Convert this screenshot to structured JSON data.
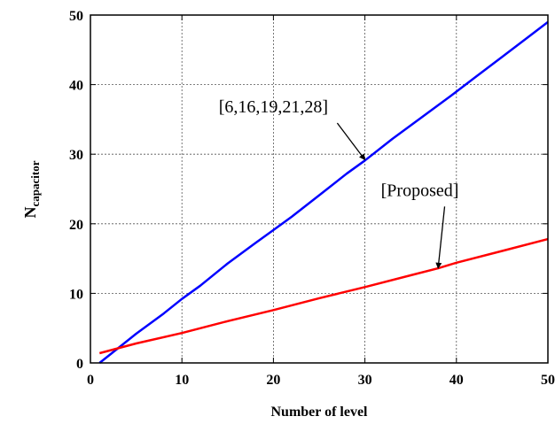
{
  "chart_data": {
    "type": "line",
    "xlabel": "Number of level",
    "ylabel": {
      "main": "N",
      "sub": "capacitor"
    },
    "xlim": [
      0,
      50
    ],
    "ylim": [
      0,
      50
    ],
    "xticks": [
      0,
      10,
      20,
      30,
      40,
      50
    ],
    "yticks": [
      0,
      10,
      20,
      30,
      40,
      50
    ],
    "grid": true,
    "series": [
      {
        "color": "#0000ff",
        "x": [
          1,
          3,
          5,
          8,
          10,
          12,
          15,
          18,
          20,
          22,
          25,
          28,
          30,
          33,
          36,
          39,
          40,
          42,
          45,
          48,
          50
        ],
        "y": [
          0,
          2.1,
          4.2,
          7.1,
          9.2,
          11.1,
          14.3,
          17.2,
          19.1,
          21.0,
          24.1,
          27.2,
          29.1,
          32.2,
          35.1,
          38.0,
          39.0,
          41.0,
          44.0,
          47.0,
          49.0
        ]
      },
      {
        "color": "#ff0000",
        "x": [
          1,
          5,
          10,
          15,
          20,
          25,
          30,
          35,
          38,
          40,
          45,
          50
        ],
        "y": [
          1.4,
          2.8,
          4.3,
          6.0,
          7.6,
          9.3,
          10.9,
          12.6,
          13.6,
          14.4,
          16.1,
          17.8
        ]
      }
    ],
    "annotations": [
      {
        "text": "[6,16,19,21,28]",
        "target": [
          30,
          29.2
        ],
        "label_at": [
          20,
          36
        ]
      },
      {
        "text": "[Proposed]",
        "target": [
          38,
          13.6
        ],
        "label_at": [
          36,
          24
        ]
      }
    ]
  }
}
